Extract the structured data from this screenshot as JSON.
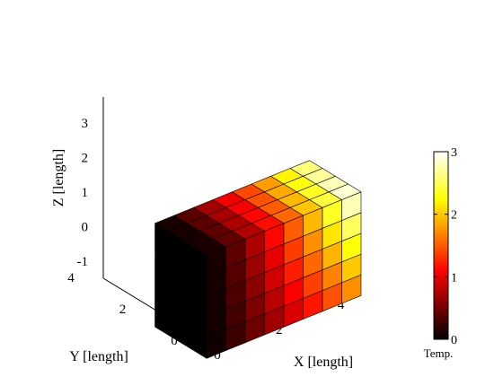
{
  "chart_data": {
    "type": "3d-surface",
    "title": "",
    "xlabel": "X [length]",
    "ylabel": "Y [length]",
    "zlabel": "Z [length]",
    "xlim": [
      0,
      5
    ],
    "ylim": [
      0,
      4
    ],
    "zlim": [
      -1.5,
      3.5
    ],
    "xticks": [
      "0",
      "2",
      "4"
    ],
    "yticks": [
      "0",
      "2",
      "4"
    ],
    "zticks": [
      "-1",
      "0",
      "1",
      "2",
      "3"
    ],
    "grid": false,
    "colormap": "hot",
    "colorbar": {
      "label": "Temp.",
      "range": [
        0,
        3
      ],
      "ticks": [
        "0",
        "1",
        "2",
        "3"
      ]
    },
    "body": {
      "shape": "box",
      "x_range": [
        0,
        5
      ],
      "y_range": [
        0,
        2
      ],
      "z_range": [
        -0.5,
        2.5
      ],
      "temperature_min": 0,
      "temperature_max": 3,
      "temperature_trend": "increases with x and z, hottest at the top far corner"
    }
  }
}
